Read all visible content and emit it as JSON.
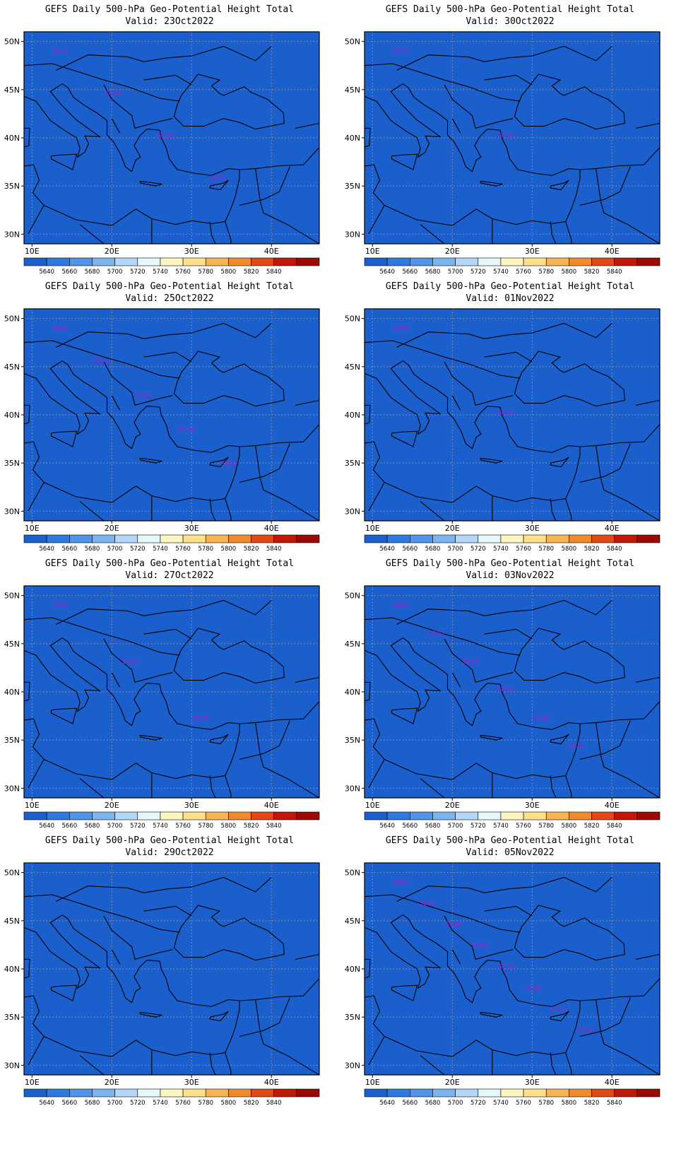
{
  "panels": [
    {
      "title": "GEFS Daily 500-hPa Geo-Potential Height Total",
      "valid": "Valid: 23Oct2022",
      "contour_labels": [
        "5640",
        "5660",
        "5680",
        "5700"
      ],
      "pattern": {
        "ridge_lon": 12,
        "ridge_lat": 37,
        "trough_lon": 42,
        "trough_lat": 52,
        "strength": 1.0,
        "base": 5760
      }
    },
    {
      "title": "GEFS Daily 500-hPa Geo-Potential Height Total",
      "valid": "Valid: 30Oct2022",
      "contour_labels": [
        "5740",
        "5720"
      ],
      "pattern": {
        "ridge_lon": 9,
        "ridge_lat": 38,
        "trough_lon": 33,
        "trough_lat": 40,
        "strength": 0.6,
        "base": 5735
      }
    },
    {
      "title": "GEFS Daily 500-hPa Geo-Potential Height Total",
      "valid": "Valid: 25Oct2022",
      "contour_labels": [
        "5680",
        "5700",
        "5720",
        "5740",
        "5760"
      ],
      "pattern": {
        "ridge_lon": 13,
        "ridge_lat": 37,
        "trough_lon": 40,
        "trough_lat": 53,
        "strength": 1.0,
        "base": 5770
      }
    },
    {
      "title": "GEFS Daily 500-hPa Geo-Potential Height Total",
      "valid": "Valid: 01Nov2022",
      "contour_labels": [
        "5760",
        "5760"
      ],
      "pattern": {
        "ridge_lon": 10,
        "ridge_lat": 33,
        "trough_lon": 30,
        "trough_lat": 44,
        "strength": 0.55,
        "base": 5740
      }
    },
    {
      "title": "GEFS Daily 500-hPa Geo-Potential Height Total",
      "valid": "Valid: 27Oct2022",
      "contour_labels": [
        "5760",
        "5780",
        "5800"
      ],
      "pattern": {
        "ridge_lon": 14,
        "ridge_lat": 36,
        "trough_lon": 42,
        "trough_lat": 51,
        "strength": 1.0,
        "base": 5790
      }
    },
    {
      "title": "GEFS Daily 500-hPa Geo-Potential Height Total",
      "valid": "Valid: 03Nov2022",
      "contour_labels": [
        "5680",
        "5700",
        "5680",
        "5700",
        "5720",
        "5740"
      ],
      "pattern": {
        "ridge_lon": 20,
        "ridge_lat": 28,
        "trough_lon": 36,
        "trough_lat": 44,
        "strength": 0.65,
        "base": 5715
      }
    },
    {
      "title": "GEFS Daily 500-hPa Geo-Potential Height Total",
      "valid": "Valid: 29Oct2022",
      "contour_labels": [],
      "pattern": {
        "ridge_lon": 11,
        "ridge_lat": 38,
        "trough_lon": 38,
        "trough_lat": 46,
        "strength": 0.8,
        "base": 5765
      }
    },
    {
      "title": "GEFS Daily 500-hPa Geo-Potential Height Total",
      "valid": "Valid: 05Nov2022",
      "contour_labels": [
        "5660",
        "5680",
        "5680",
        "5700",
        "5700",
        "5720",
        "5720",
        "5740"
      ],
      "pattern": {
        "ridge_lon": 25,
        "ridge_lat": 26,
        "trough_lon": 30,
        "trough_lat": 52,
        "strength": 0.7,
        "base": 5690
      }
    }
  ],
  "axes": {
    "lat_labels": [
      "50N",
      "45N",
      "40N",
      "35N",
      "30N"
    ],
    "lat_values": [
      50,
      45,
      40,
      35,
      30
    ],
    "lon_labels": [
      "10E",
      "20E",
      "30E",
      "40E"
    ],
    "lon_values": [
      10,
      20,
      30,
      40
    ],
    "lon_range": [
      9,
      46
    ],
    "lat_range": [
      29,
      51
    ]
  },
  "colorbar": {
    "labels": [
      "5640",
      "5660",
      "5680",
      "5700",
      "5720",
      "5740",
      "5760",
      "5780",
      "5800",
      "5820",
      "5840"
    ],
    "colors": [
      "#1a5fcc",
      "#2f7ae0",
      "#4f95ec",
      "#7cb4f2",
      "#b2d7f8",
      "#e6f7fb",
      "#fdf5c0",
      "#fde08a",
      "#f7b552",
      "#f08a2c",
      "#e04a14",
      "#c01808",
      "#9a0a02"
    ]
  },
  "contour_color": "#a020c8"
}
